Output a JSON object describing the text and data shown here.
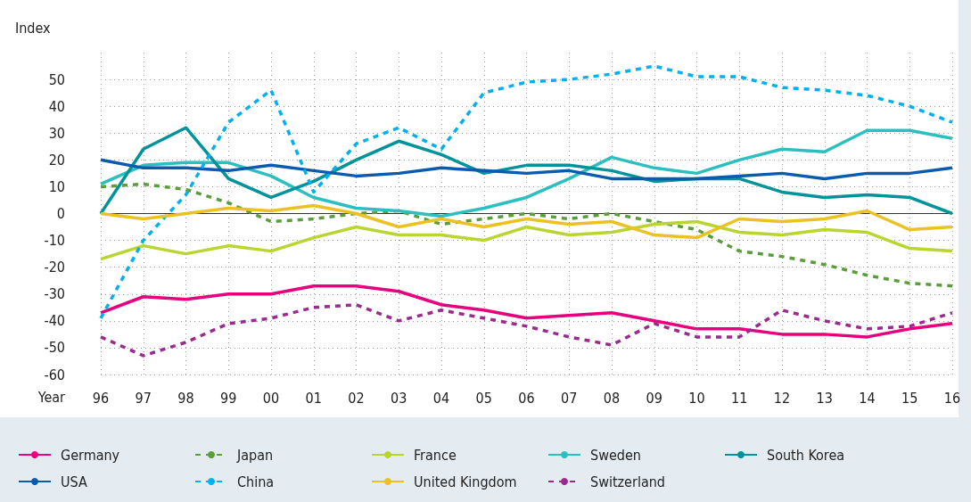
{
  "chart_data": {
    "type": "line",
    "xlabel": "Year",
    "ylabel": "Index",
    "categories": [
      "96",
      "97",
      "98",
      "99",
      "00",
      "01",
      "02",
      "03",
      "04",
      "05",
      "06",
      "07",
      "08",
      "09",
      "10",
      "11",
      "12",
      "13",
      "14",
      "15",
      "16"
    ],
    "ylim": [
      -60,
      60
    ],
    "yticks": [
      -60,
      -50,
      -40,
      -30,
      -20,
      -10,
      0,
      10,
      20,
      30,
      40,
      50
    ],
    "grid": true,
    "legend": "bottom",
    "marker": "none",
    "series": [
      {
        "name": "Germany",
        "color": "#e6007e",
        "line_style": "solid",
        "values": [
          -37,
          -31,
          -32,
          -30,
          -30,
          -27,
          -27,
          -29,
          -34,
          -36,
          -39,
          -38,
          -37,
          -40,
          -43,
          -43,
          -45,
          -45,
          -46,
          -43,
          -41
        ]
      },
      {
        "name": "Japan",
        "color": "#5a9e3a",
        "line_style": "dashed",
        "values": [
          10,
          11,
          9,
          4,
          -3,
          -2,
          0,
          1,
          -4,
          -2,
          0,
          -2,
          0,
          -3,
          -6,
          -14,
          -16,
          -19,
          -23,
          -26,
          -27
        ]
      },
      {
        "name": "France",
        "color": "#b9d531",
        "line_style": "solid",
        "values": [
          -17,
          -12,
          -15,
          -12,
          -14,
          -9,
          -5,
          -8,
          -8,
          -10,
          -5,
          -8,
          -7,
          -4,
          -3,
          -7,
          -8,
          -6,
          -7,
          -13,
          -14
        ]
      },
      {
        "name": "Sweden",
        "color": "#2bbfbf",
        "line_style": "solid",
        "values": [
          11,
          18,
          19,
          19,
          14,
          6,
          2,
          1,
          -1,
          2,
          6,
          13,
          21,
          17,
          15,
          20,
          24,
          23,
          31,
          31,
          28
        ]
      },
      {
        "name": "South Korea",
        "color": "#00939a",
        "line_style": "solid",
        "values": [
          0,
          24,
          32,
          13,
          6,
          12,
          20,
          27,
          22,
          15,
          18,
          18,
          16,
          12,
          13,
          13,
          8,
          6,
          7,
          6,
          0
        ]
      },
      {
        "name": "USA",
        "color": "#0a5bb0",
        "line_style": "solid",
        "values": [
          20,
          17,
          17,
          16,
          18,
          16,
          14,
          15,
          17,
          16,
          15,
          16,
          13,
          13,
          13,
          14,
          15,
          13,
          15,
          15,
          17
        ]
      },
      {
        "name": "China",
        "color": "#00b0f0",
        "line_style": "dashed",
        "values": [
          -39,
          -10,
          7,
          34,
          46,
          8,
          26,
          32,
          24,
          45,
          49,
          50,
          52,
          55,
          51,
          51,
          47,
          46,
          44,
          40,
          34
        ]
      },
      {
        "name": "United Kingdom",
        "color": "#ebc123",
        "line_style": "solid",
        "values": [
          0,
          -2,
          0,
          2,
          1,
          3,
          0,
          -5,
          -2,
          -5,
          -2,
          -4,
          -3,
          -8,
          -9,
          -2,
          -3,
          -2,
          1,
          -6,
          -5
        ]
      },
      {
        "name": "Switzerland",
        "color": "#9b2a8e",
        "line_style": "dashed",
        "values": [
          -46,
          -53,
          -48,
          -41,
          -39,
          -35,
          -34,
          -40,
          -36,
          -39,
          -42,
          -46,
          -49,
          -41,
          -46,
          -46,
          -36,
          -40,
          -43,
          -42,
          -37
        ]
      }
    ]
  }
}
